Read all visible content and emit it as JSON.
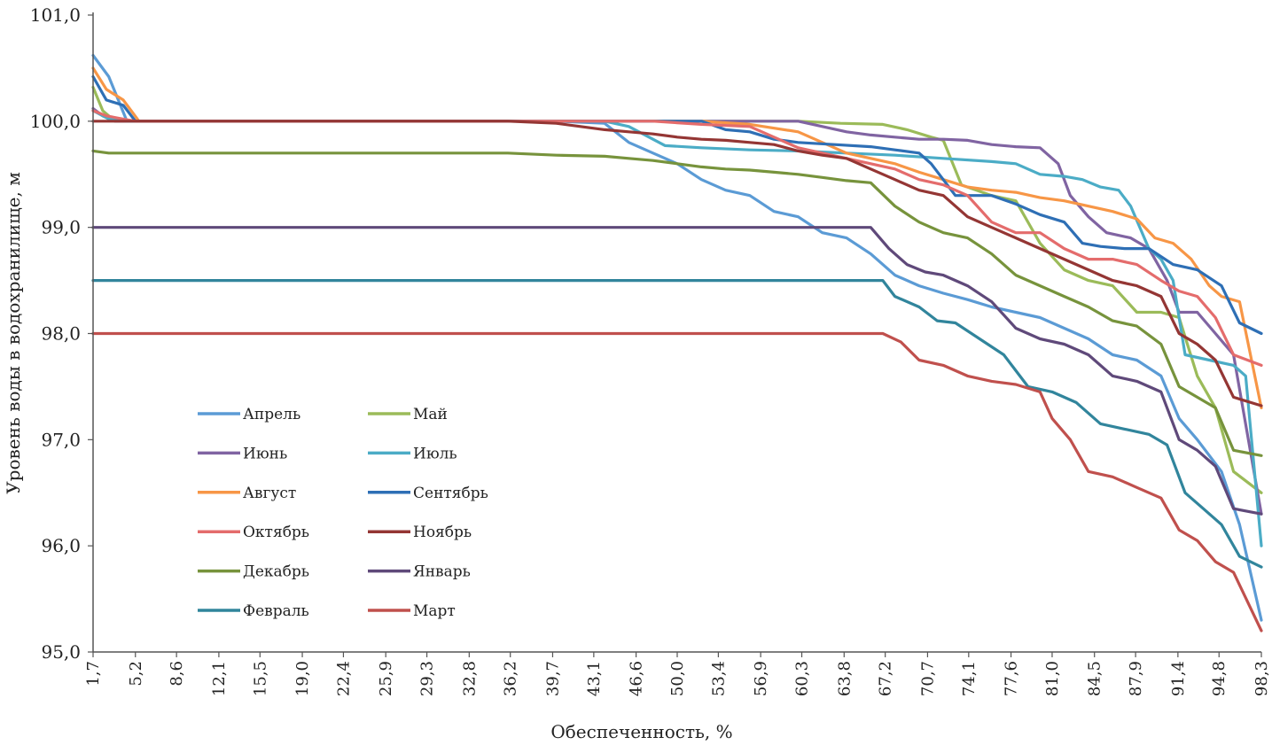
{
  "chart_data": {
    "type": "line",
    "title": "",
    "xlabel": "Обеспеченность, %",
    "ylabel": "Уровень воды в водохранилище, м",
    "ylim": [
      95.0,
      101.0
    ],
    "xlim": [
      1.7,
      98.3
    ],
    "grid": false,
    "legend_position": "lower-left",
    "y_ticks": [
      "95,0",
      "96,0",
      "97,0",
      "98,0",
      "99,0",
      "100,0",
      "101,0"
    ],
    "y_tick_values": [
      95,
      96,
      97,
      98,
      99,
      100,
      101
    ],
    "x_tick_labels": [
      "1,7",
      "5,2",
      "8,6",
      "12,1",
      "15,5",
      "19,0",
      "22,4",
      "25,9",
      "29,3",
      "32,8",
      "36,2",
      "39,7",
      "43,1",
      "46,6",
      "50,0",
      "53,4",
      "56,9",
      "60,3",
      "63,8",
      "67,2",
      "70,7",
      "74,1",
      "77,6",
      "81,0",
      "84,5",
      "87,9",
      "91,4",
      "94,8",
      "98,3"
    ],
    "x_tick_values": [
      1.7,
      5.2,
      8.6,
      12.1,
      15.5,
      19.0,
      22.4,
      25.9,
      29.3,
      32.8,
      36.2,
      39.7,
      43.1,
      46.6,
      50.0,
      53.4,
      56.9,
      60.3,
      63.8,
      67.2,
      70.7,
      74.1,
      77.6,
      81.0,
      84.5,
      87.9,
      91.4,
      94.8,
      98.3
    ],
    "series": [
      {
        "name": "Апрель",
        "color": "#5b9bd5",
        "x": [
          1.7,
          3.0,
          4.5,
          5.2,
          40.0,
          44.0,
          46.0,
          48.0,
          50.0,
          52.0,
          54.0,
          56.0,
          58.0,
          60.0,
          62.0,
          64.0,
          66.0,
          68.0,
          70.0,
          72.0,
          74.0,
          76.0,
          78.0,
          80.0,
          82.0,
          84.0,
          86.0,
          88.0,
          90.0,
          91.5,
          93.0,
          95.0,
          96.5,
          98.3
        ],
        "y": [
          100.62,
          100.42,
          100.0,
          100.0,
          100.0,
          99.98,
          99.8,
          99.7,
          99.6,
          99.45,
          99.35,
          99.3,
          99.15,
          99.1,
          98.95,
          98.9,
          98.75,
          98.55,
          98.45,
          98.38,
          98.32,
          98.25,
          98.2,
          98.15,
          98.05,
          97.95,
          97.8,
          97.75,
          97.6,
          97.2,
          97.0,
          96.7,
          96.2,
          95.3
        ]
      },
      {
        "name": "Май",
        "color": "#9bbb59",
        "x": [
          1.7,
          2.5,
          3.5,
          60.0,
          63.5,
          67.0,
          69.0,
          71.0,
          72.0,
          73.5,
          76.0,
          78.0,
          80.0,
          82.0,
          84.0,
          86.0,
          88.0,
          90.0,
          91.5,
          93.0,
          94.5,
          96.0,
          98.3
        ],
        "y": [
          100.32,
          100.1,
          100.0,
          100.0,
          99.98,
          99.97,
          99.92,
          99.85,
          99.82,
          99.4,
          99.3,
          99.25,
          98.85,
          98.6,
          98.5,
          98.45,
          98.2,
          98.2,
          98.15,
          97.6,
          97.3,
          96.7,
          96.5
        ]
      },
      {
        "name": "Июнь",
        "color": "#8064a2",
        "x": [
          1.7,
          2.5,
          3.5,
          60.0,
          62.0,
          64.0,
          66.0,
          68.0,
          70.0,
          72.0,
          74.0,
          76.0,
          78.0,
          80.0,
          81.5,
          82.5,
          84.0,
          85.5,
          87.5,
          89.0,
          90.5,
          91.5,
          93.0,
          94.5,
          96.0,
          98.3
        ],
        "y": [
          100.12,
          100.05,
          100.0,
          100.0,
          99.95,
          99.9,
          99.87,
          99.85,
          99.83,
          99.83,
          99.82,
          99.78,
          99.76,
          99.75,
          99.6,
          99.3,
          99.1,
          98.95,
          98.9,
          98.8,
          98.5,
          98.2,
          98.2,
          98.0,
          97.8,
          96.3
        ]
      },
      {
        "name": "Июль",
        "color": "#4bacc6",
        "x": [
          1.7,
          3.0,
          4.5,
          44.0,
          46.0,
          49.0,
          52.0,
          56.0,
          60.0,
          64.0,
          68.0,
          72.0,
          76.0,
          78.0,
          80.0,
          82.0,
          83.5,
          85.0,
          86.5,
          87.5,
          89.0,
          90.0,
          91.0,
          92.0,
          94.0,
          96.0,
          97.0,
          98.3
        ],
        "y": [
          100.1,
          100.02,
          100.0,
          100.0,
          99.95,
          99.77,
          99.75,
          99.73,
          99.72,
          99.7,
          99.68,
          99.65,
          99.62,
          99.6,
          99.5,
          99.48,
          99.45,
          99.38,
          99.35,
          99.2,
          98.8,
          98.7,
          98.5,
          97.8,
          97.75,
          97.7,
          97.6,
          96.0
        ]
      },
      {
        "name": "Август",
        "color": "#f79646",
        "x": [
          1.7,
          2.8,
          4.2,
          5.5,
          52.0,
          56.0,
          60.0,
          62.0,
          64.0,
          66.0,
          68.0,
          70.0,
          72.0,
          74.0,
          76.0,
          78.0,
          80.0,
          82.0,
          84.0,
          86.0,
          88.0,
          89.5,
          91.0,
          92.5,
          94.0,
          95.0,
          96.5,
          98.3
        ],
        "y": [
          100.5,
          100.3,
          100.2,
          100.0,
          100.0,
          99.97,
          99.9,
          99.8,
          99.7,
          99.65,
          99.6,
          99.52,
          99.45,
          99.38,
          99.35,
          99.33,
          99.28,
          99.25,
          99.2,
          99.15,
          99.08,
          98.9,
          98.85,
          98.7,
          98.45,
          98.35,
          98.3,
          97.3
        ]
      },
      {
        "name": "Сентябрь",
        "color": "#2e6fb5",
        "x": [
          1.7,
          2.8,
          4.2,
          5.2,
          52.0,
          54.0,
          56.0,
          58.0,
          60.0,
          63.0,
          66.0,
          68.0,
          70.0,
          71.0,
          73.0,
          76.0,
          78.0,
          80.0,
          82.0,
          83.5,
          85.0,
          87.0,
          89.0,
          91.0,
          93.0,
          95.0,
          96.5,
          98.3
        ],
        "y": [
          100.42,
          100.2,
          100.15,
          100.0,
          100.0,
          99.92,
          99.9,
          99.83,
          99.8,
          99.78,
          99.76,
          99.73,
          99.7,
          99.6,
          99.3,
          99.3,
          99.22,
          99.12,
          99.05,
          98.85,
          98.82,
          98.8,
          98.8,
          98.65,
          98.6,
          98.45,
          98.1,
          98.0
        ]
      },
      {
        "name": "Октябрь",
        "color": "#e46c6c",
        "x": [
          1.7,
          2.8,
          4.2,
          5.2,
          48.0,
          52.0,
          56.0,
          58.0,
          60.0,
          62.0,
          64.0,
          66.0,
          68.0,
          70.0,
          72.0,
          74.0,
          76.0,
          78.0,
          80.0,
          82.0,
          84.0,
          86.0,
          88.0,
          90.0,
          91.5,
          93.0,
          94.5,
          96.0,
          98.3
        ],
        "y": [
          100.1,
          100.05,
          100.02,
          100.0,
          100.0,
          99.97,
          99.95,
          99.85,
          99.75,
          99.7,
          99.65,
          99.6,
          99.55,
          99.45,
          99.4,
          99.3,
          99.05,
          98.95,
          98.95,
          98.8,
          98.7,
          98.7,
          98.65,
          98.5,
          98.4,
          98.35,
          98.15,
          97.8,
          97.7
        ]
      },
      {
        "name": "Ноябрь",
        "color": "#943634",
        "x": [
          1.7,
          36.0,
          40.0,
          42.0,
          44.0,
          46.0,
          48.0,
          50.0,
          52.0,
          54.0,
          56.0,
          58.0,
          60.0,
          62.0,
          64.0,
          66.0,
          68.0,
          70.0,
          72.0,
          74.0,
          76.0,
          78.0,
          80.0,
          82.0,
          84.0,
          86.0,
          88.0,
          90.0,
          91.5,
          93.0,
          94.5,
          96.0,
          98.3
        ],
        "y": [
          100.0,
          100.0,
          99.98,
          99.95,
          99.92,
          99.9,
          99.88,
          99.85,
          99.83,
          99.82,
          99.8,
          99.78,
          99.72,
          99.68,
          99.65,
          99.55,
          99.45,
          99.35,
          99.3,
          99.1,
          99.0,
          98.9,
          98.8,
          98.7,
          98.6,
          98.5,
          98.45,
          98.35,
          98.0,
          97.9,
          97.75,
          97.4,
          97.32
        ]
      },
      {
        "name": "Декабрь",
        "color": "#77933c",
        "x": [
          1.7,
          3.0,
          36.0,
          40.0,
          44.0,
          46.0,
          48.0,
          50.0,
          52.0,
          54.0,
          56.0,
          58.0,
          60.0,
          62.0,
          64.0,
          66.0,
          68.0,
          70.0,
          72.0,
          74.0,
          76.0,
          78.0,
          80.0,
          82.0,
          84.0,
          86.0,
          88.0,
          90.0,
          91.5,
          93.0,
          94.5,
          96.0,
          98.3
        ],
        "y": [
          99.72,
          99.7,
          99.7,
          99.68,
          99.67,
          99.65,
          99.63,
          99.6,
          99.57,
          99.55,
          99.54,
          99.52,
          99.5,
          99.47,
          99.44,
          99.42,
          99.2,
          99.05,
          98.95,
          98.9,
          98.75,
          98.55,
          98.45,
          98.35,
          98.25,
          98.12,
          98.07,
          97.9,
          97.5,
          97.4,
          97.3,
          96.9,
          96.85
        ]
      },
      {
        "name": "Январь",
        "color": "#5f497a",
        "x": [
          1.7,
          66.0,
          67.5,
          69.0,
          70.5,
          72.0,
          74.0,
          76.0,
          78.0,
          80.0,
          82.0,
          84.0,
          86.0,
          88.0,
          90.0,
          91.5,
          93.0,
          94.5,
          96.0,
          98.3
        ],
        "y": [
          99.0,
          99.0,
          98.8,
          98.65,
          98.58,
          98.55,
          98.45,
          98.3,
          98.05,
          97.95,
          97.9,
          97.8,
          97.6,
          97.55,
          97.45,
          97.0,
          96.9,
          96.75,
          96.35,
          96.3
        ]
      },
      {
        "name": "Февраль",
        "color": "#31859c",
        "x": [
          1.7,
          67.0,
          68.0,
          70.0,
          71.5,
          73.0,
          75.0,
          77.0,
          79.0,
          81.0,
          83.0,
          85.0,
          87.0,
          89.0,
          90.5,
          92.0,
          93.5,
          95.0,
          96.5,
          98.3
        ],
        "y": [
          98.5,
          98.5,
          98.35,
          98.25,
          98.12,
          98.1,
          97.95,
          97.8,
          97.5,
          97.45,
          97.35,
          97.15,
          97.1,
          97.05,
          96.95,
          96.5,
          96.35,
          96.2,
          95.9,
          95.8
        ]
      },
      {
        "name": "Март",
        "color": "#c0504d",
        "x": [
          1.7,
          67.0,
          68.5,
          70.0,
          72.0,
          74.0,
          76.0,
          78.0,
          80.0,
          81.0,
          82.5,
          84.0,
          86.0,
          88.0,
          90.0,
          91.5,
          93.0,
          94.5,
          96.0,
          98.3
        ],
        "y": [
          98.0,
          98.0,
          97.92,
          97.75,
          97.7,
          97.6,
          97.55,
          97.52,
          97.45,
          97.2,
          97.0,
          96.7,
          96.65,
          96.55,
          96.45,
          96.15,
          96.05,
          95.85,
          95.75,
          95.2
        ]
      }
    ]
  }
}
